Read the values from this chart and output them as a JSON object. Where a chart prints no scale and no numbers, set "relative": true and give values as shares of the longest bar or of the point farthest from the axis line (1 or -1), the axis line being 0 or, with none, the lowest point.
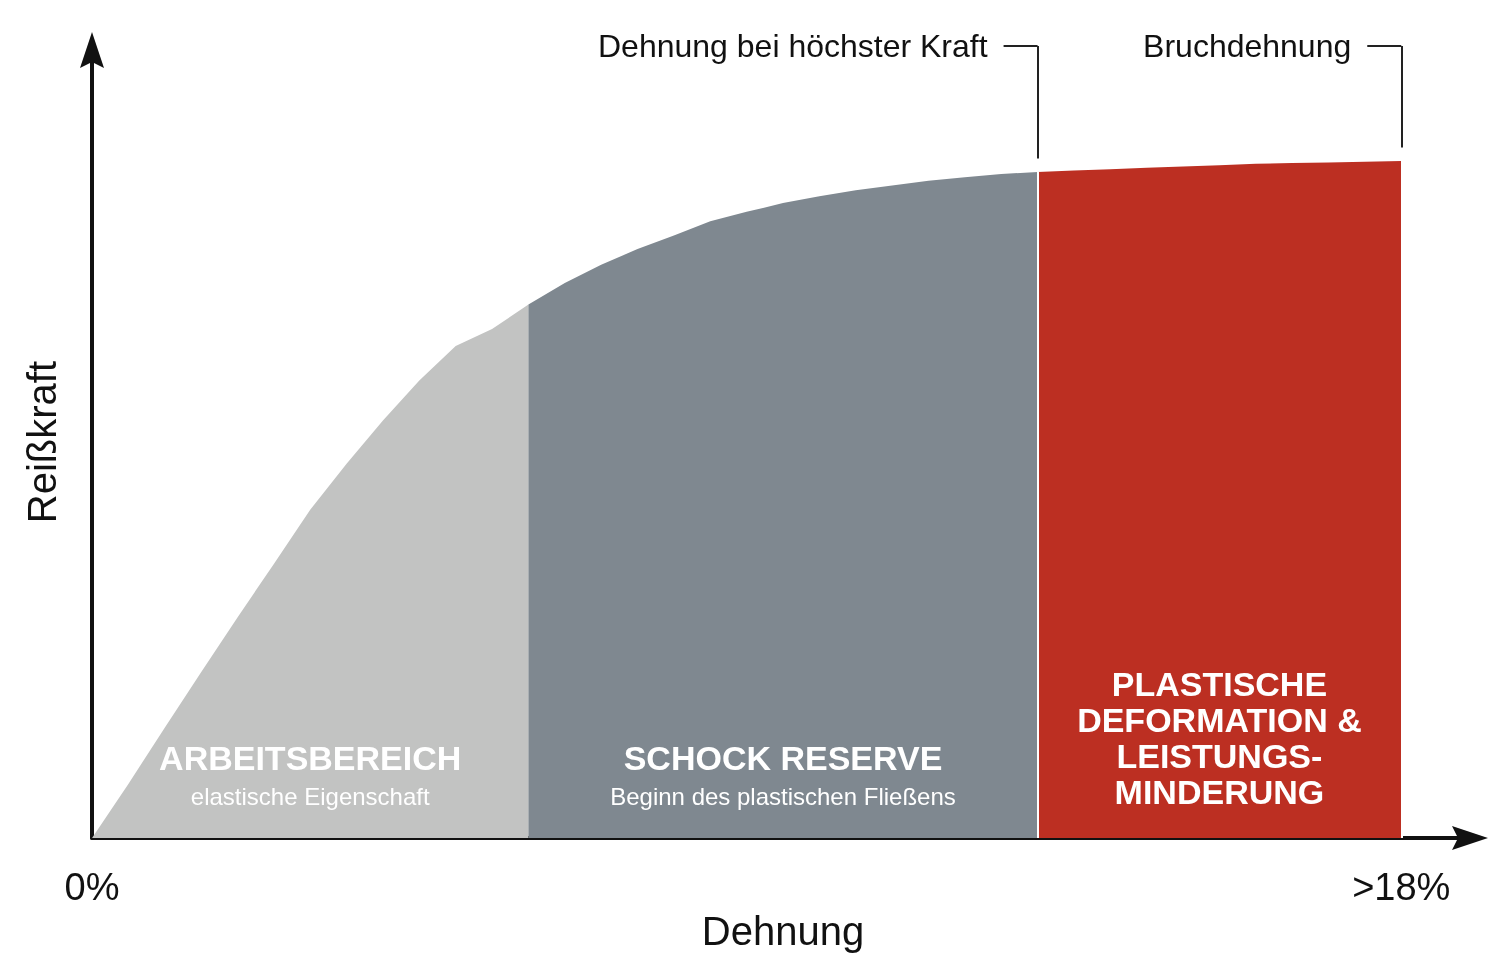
{
  "chart_data": {
    "type": "area",
    "relative": true,
    "xlabel": "Dehnung",
    "ylabel": "Reißkraft",
    "legend": false,
    "categories": [
      "0%",
      null,
      null,
      null,
      null,
      null,
      null,
      null,
      null,
      null,
      null,
      null,
      null,
      null,
      null,
      null,
      null,
      null,
      null,
      null,
      null,
      null,
      null,
      null,
      null,
      null,
      null,
      null,
      null,
      null,
      null,
      null,
      null,
      null,
      null,
      null,
      ">18%",
      null,
      null
    ],
    "series": [
      {
        "name": "ARBEITSBEREICH",
        "color": "#c2c3c2",
        "values": [
          0,
          0.08,
          0.163,
          0.245,
          0.326,
          0.405,
          0.485,
          0.553,
          0.617,
          0.676,
          0.727,
          0.752,
          0.788,
          null,
          null,
          null,
          null,
          null,
          null,
          null,
          null,
          null,
          null,
          null,
          null,
          null,
          null,
          null,
          null,
          null,
          null,
          null,
          null,
          null,
          null,
          null,
          null,
          null,
          null
        ]
      },
      {
        "name": "SCHOCK RESERVE",
        "color": "#7f8890",
        "values": [
          null,
          null,
          null,
          null,
          null,
          null,
          null,
          null,
          null,
          null,
          null,
          null,
          0.788,
          0.82,
          0.847,
          0.87,
          0.89,
          0.911,
          0.925,
          0.938,
          0.948,
          0.957,
          0.964,
          0.971,
          0.976,
          0.981,
          0.984,
          null,
          null,
          null,
          null,
          null,
          null,
          null,
          null,
          null,
          null,
          null,
          null
        ]
      },
      {
        "name": "PLASTISCHE\nDEFORMATION &\nLEISTUNGS-\nMINDERUNG",
        "color": "#bc2f22",
        "values": [
          null,
          null,
          null,
          null,
          null,
          null,
          null,
          null,
          null,
          null,
          null,
          null,
          null,
          null,
          null,
          null,
          null,
          null,
          null,
          null,
          null,
          null,
          null,
          null,
          null,
          null,
          0.984,
          0.986,
          0.988,
          0.99,
          0.992,
          0.994,
          0.996,
          0.997,
          0.998,
          0.999,
          1,
          null,
          null
        ]
      }
    ],
    "annotations": [
      "elastische Eigenschaft",
      "Beginn des plastischen Fließens",
      "Dehnung bei höchster Kraft",
      "Bruchdehnung"
    ]
  }
}
